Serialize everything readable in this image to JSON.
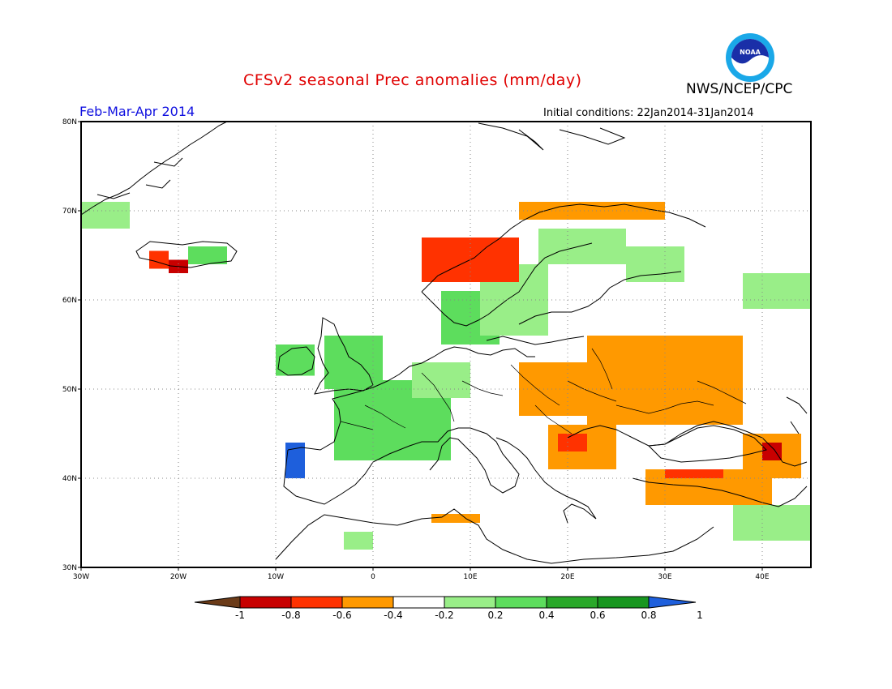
{
  "header": {
    "title": "CFSv2 seasonal Prec anomalies (mm/day)",
    "agency": "NWS/NCEP/CPC",
    "season": "Feb-Mar-Apr 2014",
    "initial_conditions": "Initial conditions: 22Jan2014-31Jan2014",
    "logo_text": "NOAA"
  },
  "map": {
    "lon_range": [
      -30,
      45
    ],
    "lat_range": [
      30,
      80
    ],
    "lon_ticks": [
      "30W",
      "20W",
      "10W",
      "0",
      "10E",
      "20E",
      "30E",
      "40E"
    ],
    "lat_ticks": [
      "30N",
      "40N",
      "50N",
      "60N",
      "70N",
      "80N"
    ],
    "grid_lines": true
  },
  "colorbar": {
    "labels": [
      "-1",
      "-0.8",
      "-0.6",
      "-0.4",
      "-0.2",
      "0.2",
      "0.4",
      "0.6",
      "0.8",
      "1"
    ],
    "colors": [
      "#6b3b18",
      "#c80000",
      "#ff3200",
      "#ff9900",
      "#ffffff",
      "#99ee88",
      "#5ddd5d",
      "#2aa82a",
      "#17961f",
      "#1e5fdc"
    ]
  },
  "anomaly_regions": [
    {
      "id": "iceland-west-dry",
      "lon": [
        -23,
        -21
      ],
      "lat": [
        63.5,
        65.5
      ],
      "color": "#ff3200"
    },
    {
      "id": "iceland-south-very-dry",
      "lon": [
        -21,
        -19
      ],
      "lat": [
        63,
        64.5
      ],
      "color": "#c80000"
    },
    {
      "id": "iceland-east-wet",
      "lon": [
        -19,
        -15
      ],
      "lat": [
        64,
        66
      ],
      "color": "#5ddd5d"
    },
    {
      "id": "greenland-wet",
      "lon": [
        -30,
        -25
      ],
      "lat": [
        68,
        71
      ],
      "color": "#99ee88"
    },
    {
      "id": "ireland-wet",
      "lon": [
        -10,
        -6
      ],
      "lat": [
        51.5,
        55
      ],
      "color": "#5ddd5d"
    },
    {
      "id": "britain-wet",
      "lon": [
        -5,
        1
      ],
      "lat": [
        50,
        56
      ],
      "color": "#5ddd5d"
    },
    {
      "id": "france-benelux-wet",
      "lon": [
        -4,
        8
      ],
      "lat": [
        42,
        51
      ],
      "color": "#5ddd5d"
    },
    {
      "id": "germany-wet",
      "lon": [
        4,
        10
      ],
      "lat": [
        49,
        53
      ],
      "color": "#99ee88"
    },
    {
      "id": "iberia-nw-very-wet",
      "lon": [
        -9,
        -7
      ],
      "lat": [
        40,
        44
      ],
      "color": "#1e5fdc"
    },
    {
      "id": "denmark-wet",
      "lon": [
        7,
        13
      ],
      "lat": [
        55,
        61
      ],
      "color": "#5ddd5d"
    },
    {
      "id": "sweden-wet",
      "lon": [
        11,
        18
      ],
      "lat": [
        56,
        64
      ],
      "color": "#99ee88"
    },
    {
      "id": "scandinavia-north-wet",
      "lon": [
        17,
        26
      ],
      "lat": [
        64,
        68
      ],
      "color": "#99ee88"
    },
    {
      "id": "norway-coast-dry",
      "lon": [
        5,
        15
      ],
      "lat": [
        62,
        67
      ],
      "color": "#ff3200"
    },
    {
      "id": "norway-north-dry",
      "lon": [
        15,
        30
      ],
      "lat": [
        69,
        71
      ],
      "color": "#ff9900"
    },
    {
      "id": "finland-wet",
      "lon": [
        26,
        32
      ],
      "lat": [
        62,
        66
      ],
      "color": "#99ee88"
    },
    {
      "id": "russia-nw-wet",
      "lon": [
        38,
        45
      ],
      "lat": [
        59,
        63
      ],
      "color": "#99ee88"
    },
    {
      "id": "poland-dry",
      "lon": [
        15,
        22
      ],
      "lat": [
        47,
        53
      ],
      "color": "#ff9900"
    },
    {
      "id": "ukraine-russia-dry",
      "lon": [
        22,
        38
      ],
      "lat": [
        46,
        56
      ],
      "color": "#ff9900"
    },
    {
      "id": "balkans-dry",
      "lon": [
        18,
        25
      ],
      "lat": [
        41,
        46
      ],
      "color": "#ff9900"
    },
    {
      "id": "hungary-strong-dry",
      "lon": [
        19,
        22
      ],
      "lat": [
        43,
        45
      ],
      "color": "#ff3200"
    },
    {
      "id": "turkey-dry",
      "lon": [
        28,
        41
      ],
      "lat": [
        37,
        41
      ],
      "color": "#ff9900"
    },
    {
      "id": "turkey-strong-dry",
      "lon": [
        30,
        36
      ],
      "lat": [
        40,
        41
      ],
      "color": "#ff3200"
    },
    {
      "id": "caucasus-dry",
      "lon": [
        38,
        44
      ],
      "lat": [
        40,
        45
      ],
      "color": "#ff9900"
    },
    {
      "id": "caucasus-strong-dry",
      "lon": [
        40,
        42
      ],
      "lat": [
        42,
        44
      ],
      "color": "#c80000"
    },
    {
      "id": "levant-wet",
      "lon": [
        37,
        45
      ],
      "lat": [
        33,
        37
      ],
      "color": "#99ee88"
    },
    {
      "id": "north-africa-dry",
      "lon": [
        6,
        11
      ],
      "lat": [
        35,
        36
      ],
      "color": "#ff9900"
    },
    {
      "id": "morocco-wet",
      "lon": [
        -3,
        0
      ],
      "lat": [
        32,
        34
      ],
      "color": "#99ee88"
    }
  ]
}
